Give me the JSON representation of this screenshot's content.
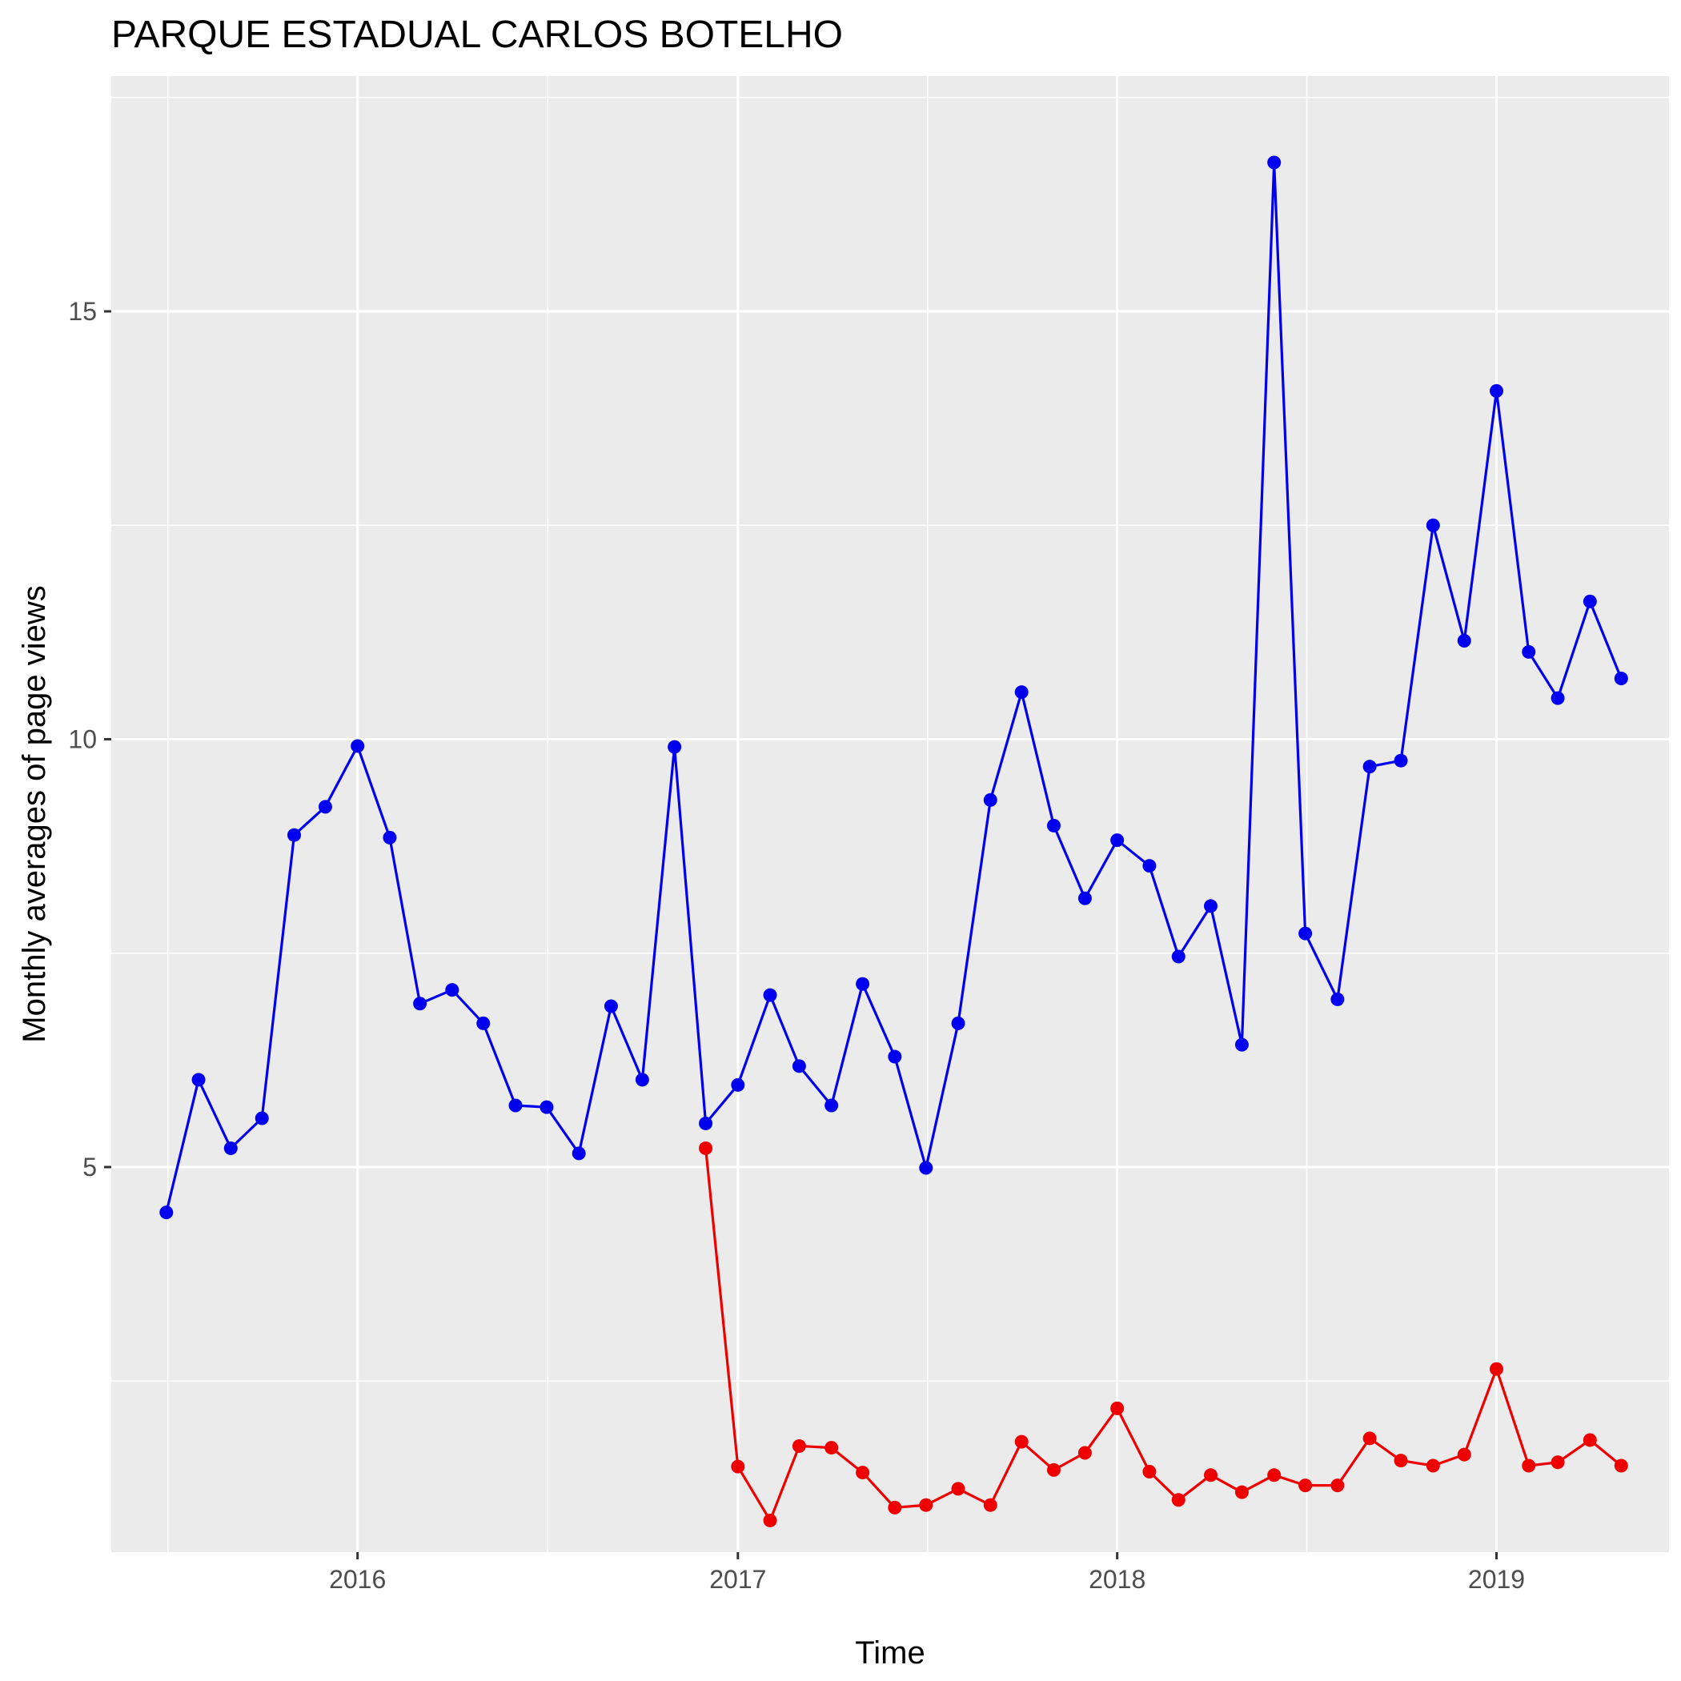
{
  "chart_data": {
    "type": "line",
    "title": "PARQUE ESTADUAL CARLOS BOTELHO",
    "xlabel": "Time",
    "ylabel": "Monthly averages of page views",
    "x_ticks": [
      "2016",
      "2017",
      "2018",
      "2019"
    ],
    "y_ticks": [
      "5",
      "10",
      "15"
    ],
    "ylim": [
      0.5,
      17.75
    ],
    "xlim": [
      "2015-05-09",
      "2019-06-16"
    ],
    "grid": true,
    "legend": "none",
    "colors": {
      "panel": "#ebebeb",
      "grid": "#ffffff",
      "series_blue": "#0000ee",
      "series_red": "#ee0000"
    },
    "series": [
      {
        "color": "#0000ee",
        "points": [
          [
            "2015-07-01",
            4.47
          ],
          [
            "2015-08-01",
            6.02
          ],
          [
            "2015-09-01",
            5.22
          ],
          [
            "2015-10-01",
            5.57
          ],
          [
            "2015-11-01",
            8.88
          ],
          [
            "2015-12-01",
            9.21
          ],
          [
            "2016-01-01",
            9.92
          ],
          [
            "2016-02-01",
            8.85
          ],
          [
            "2016-03-01",
            6.91
          ],
          [
            "2016-04-01",
            7.07
          ],
          [
            "2016-05-01",
            6.68
          ],
          [
            "2016-06-01",
            5.72
          ],
          [
            "2016-07-01",
            5.7
          ],
          [
            "2016-08-01",
            5.16
          ],
          [
            "2016-09-01",
            6.88
          ],
          [
            "2016-10-01",
            6.02
          ],
          [
            "2016-11-01",
            9.91
          ],
          [
            "2016-12-01",
            5.51
          ],
          [
            "2017-01-01",
            5.96
          ],
          [
            "2017-02-01",
            7.01
          ],
          [
            "2017-03-01",
            6.18
          ],
          [
            "2017-04-01",
            5.72
          ],
          [
            "2017-05-01",
            7.14
          ],
          [
            "2017-06-01",
            6.29
          ],
          [
            "2017-07-01",
            4.99
          ],
          [
            "2017-08-01",
            6.68
          ],
          [
            "2017-09-01",
            9.29
          ],
          [
            "2017-10-01",
            10.55
          ],
          [
            "2017-11-01",
            8.99
          ],
          [
            "2017-12-01",
            8.14
          ],
          [
            "2018-01-01",
            8.82
          ],
          [
            "2018-02-01",
            8.52
          ],
          [
            "2018-03-01",
            7.46
          ],
          [
            "2018-04-01",
            8.05
          ],
          [
            "2018-05-01",
            6.43
          ],
          [
            "2018-06-01",
            16.74
          ],
          [
            "2018-07-01",
            7.73
          ],
          [
            "2018-08-01",
            6.96
          ],
          [
            "2018-09-01",
            9.68
          ],
          [
            "2018-10-01",
            9.75
          ],
          [
            "2018-11-01",
            12.5
          ],
          [
            "2018-12-01",
            11.15
          ],
          [
            "2019-01-01",
            14.07
          ],
          [
            "2019-02-01",
            11.02
          ],
          [
            "2019-03-01",
            10.48
          ],
          [
            "2019-04-01",
            11.61
          ],
          [
            "2019-05-01",
            10.71
          ]
        ]
      },
      {
        "color": "#ee0000",
        "points": [
          [
            "2016-12-01",
            5.22
          ],
          [
            "2017-01-01",
            1.5
          ],
          [
            "2017-02-01",
            0.87
          ],
          [
            "2017-03-01",
            1.74
          ],
          [
            "2017-04-01",
            1.72
          ],
          [
            "2017-05-01",
            1.43
          ],
          [
            "2017-06-01",
            1.02
          ],
          [
            "2017-07-01",
            1.05
          ],
          [
            "2017-08-01",
            1.24
          ],
          [
            "2017-09-01",
            1.05
          ],
          [
            "2017-10-01",
            1.79
          ],
          [
            "2017-11-01",
            1.46
          ],
          [
            "2017-12-01",
            1.66
          ],
          [
            "2018-01-01",
            2.18
          ],
          [
            "2018-02-01",
            1.44
          ],
          [
            "2018-03-01",
            1.11
          ],
          [
            "2018-04-01",
            1.4
          ],
          [
            "2018-05-01",
            1.2
          ],
          [
            "2018-06-01",
            1.4
          ],
          [
            "2018-07-01",
            1.28
          ],
          [
            "2018-08-01",
            1.28
          ],
          [
            "2018-09-01",
            1.83
          ],
          [
            "2018-10-01",
            1.57
          ],
          [
            "2018-11-01",
            1.51
          ],
          [
            "2018-12-01",
            1.64
          ],
          [
            "2019-01-01",
            2.64
          ],
          [
            "2019-02-01",
            1.51
          ],
          [
            "2019-03-01",
            1.55
          ],
          [
            "2019-04-01",
            1.81
          ],
          [
            "2019-05-01",
            1.51
          ]
        ]
      }
    ]
  }
}
